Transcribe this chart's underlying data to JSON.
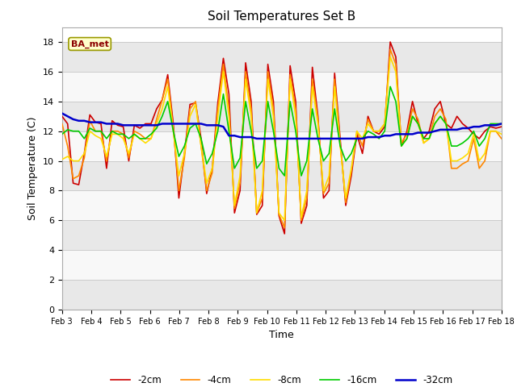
{
  "title": "Soil Temperatures Set B",
  "xlabel": "Time",
  "ylabel": "Soil Temperature (C)",
  "legend_label": "BA_met",
  "ylim": [
    0,
    19
  ],
  "yticks": [
    0,
    2,
    4,
    6,
    8,
    10,
    12,
    14,
    16,
    18
  ],
  "x_labels": [
    "Feb 3",
    "Feb 4",
    "Feb 5",
    "Feb 6",
    "Feb 7",
    "Feb 8",
    "Feb 9",
    "Feb 10",
    "Feb 11",
    "Feb 12",
    "Feb 13",
    "Feb 14",
    "Feb 15",
    "Feb 16",
    "Feb 17",
    "Feb 18"
  ],
  "background_color": "#ffffff",
  "band_colors": [
    "#e8e8e8",
    "#f8f8f8"
  ],
  "series": {
    "-2cm": {
      "color": "#cc0000",
      "linewidth": 1.2
    },
    "-4cm": {
      "color": "#ff8800",
      "linewidth": 1.2
    },
    "-8cm": {
      "color": "#ffdd00",
      "linewidth": 1.2
    },
    "-16cm": {
      "color": "#00cc00",
      "linewidth": 1.2
    },
    "-32cm": {
      "color": "#0000cc",
      "linewidth": 1.8
    }
  },
  "data_2cm": [
    13.0,
    12.5,
    8.5,
    8.4,
    10.5,
    13.1,
    12.6,
    12.5,
    9.5,
    12.7,
    12.4,
    12.3,
    10.0,
    12.4,
    12.2,
    12.5,
    12.5,
    13.5,
    14.1,
    15.8,
    12.5,
    7.5,
    10.5,
    13.8,
    13.9,
    11.5,
    7.8,
    9.5,
    13.9,
    16.9,
    14.5,
    6.5,
    8.0,
    16.6,
    14.0,
    6.4,
    7.0,
    16.5,
    14.0,
    6.3,
    5.1,
    16.4,
    14.0,
    5.8,
    7.0,
    16.3,
    13.0,
    7.5,
    8.0,
    15.9,
    11.5,
    7.0,
    9.0,
    11.8,
    10.5,
    13.0,
    12.0,
    11.8,
    12.3,
    18.0,
    17.0,
    11.0,
    12.0,
    14.0,
    12.5,
    11.5,
    12.0,
    13.5,
    14.0,
    12.5,
    12.2,
    13.0,
    12.5,
    12.2,
    11.8,
    11.5,
    12.0,
    12.3,
    12.2,
    12.3
  ],
  "data_4cm": [
    12.5,
    11.0,
    8.8,
    9.0,
    10.2,
    12.7,
    12.0,
    12.0,
    10.0,
    12.0,
    12.0,
    11.8,
    10.2,
    12.0,
    11.8,
    11.5,
    11.5,
    12.8,
    14.1,
    15.5,
    12.2,
    8.0,
    10.2,
    13.5,
    14.0,
    11.0,
    8.0,
    9.2,
    13.5,
    16.5,
    13.5,
    6.8,
    8.5,
    16.0,
    13.5,
    6.5,
    7.5,
    16.0,
    13.5,
    6.4,
    5.5,
    15.8,
    13.5,
    6.0,
    7.5,
    15.5,
    12.8,
    7.8,
    8.5,
    15.5,
    11.2,
    7.2,
    9.3,
    12.0,
    11.0,
    12.8,
    12.0,
    12.0,
    12.5,
    17.5,
    16.5,
    11.2,
    11.8,
    13.5,
    12.8,
    11.2,
    11.5,
    13.0,
    13.5,
    12.8,
    9.5,
    9.5,
    9.8,
    10.0,
    11.5,
    9.5,
    10.0,
    12.0,
    12.0,
    11.5
  ],
  "data_8cm": [
    10.1,
    10.3,
    10.0,
    10.0,
    10.5,
    12.0,
    11.7,
    11.5,
    10.3,
    11.8,
    11.8,
    11.5,
    10.5,
    11.8,
    11.5,
    11.2,
    11.5,
    12.5,
    13.5,
    15.0,
    12.0,
    9.0,
    10.5,
    13.0,
    13.8,
    11.0,
    8.5,
    9.5,
    13.0,
    16.0,
    13.0,
    7.0,
    9.0,
    15.5,
    13.0,
    6.5,
    8.0,
    15.5,
    13.0,
    6.5,
    6.0,
    15.5,
    13.0,
    6.2,
    8.0,
    15.0,
    12.5,
    8.0,
    9.0,
    15.0,
    11.0,
    7.5,
    9.5,
    12.0,
    11.5,
    12.5,
    12.0,
    12.0,
    12.5,
    17.0,
    16.0,
    11.0,
    11.5,
    13.0,
    12.5,
    11.2,
    11.5,
    12.5,
    13.0,
    12.5,
    10.0,
    10.0,
    10.2,
    10.5,
    11.8,
    10.0,
    10.5,
    12.0,
    12.0,
    11.8
  ],
  "data_16cm": [
    11.8,
    12.1,
    12.0,
    12.0,
    11.5,
    12.2,
    12.0,
    12.0,
    11.5,
    12.0,
    11.8,
    11.8,
    11.5,
    11.8,
    11.5,
    11.5,
    11.8,
    12.2,
    13.0,
    14.0,
    12.0,
    10.3,
    11.0,
    12.2,
    12.5,
    11.5,
    9.8,
    10.5,
    12.0,
    14.5,
    12.0,
    9.5,
    10.2,
    14.0,
    12.0,
    9.5,
    10.0,
    14.0,
    12.0,
    9.5,
    9.0,
    14.0,
    12.0,
    9.0,
    10.0,
    13.5,
    11.5,
    10.0,
    10.5,
    13.5,
    11.0,
    10.0,
    10.5,
    11.5,
    11.5,
    12.0,
    11.8,
    11.5,
    12.0,
    15.0,
    14.0,
    11.0,
    11.5,
    13.0,
    12.5,
    11.5,
    11.5,
    12.5,
    13.0,
    12.5,
    11.0,
    11.0,
    11.2,
    11.5,
    12.0,
    11.0,
    11.5,
    12.5,
    12.5,
    12.5
  ],
  "data_32cm": [
    13.2,
    13.0,
    12.8,
    12.7,
    12.7,
    12.6,
    12.6,
    12.6,
    12.5,
    12.5,
    12.5,
    12.4,
    12.4,
    12.4,
    12.4,
    12.4,
    12.4,
    12.4,
    12.5,
    12.5,
    12.5,
    12.5,
    12.5,
    12.5,
    12.5,
    12.5,
    12.4,
    12.4,
    12.4,
    12.3,
    11.7,
    11.7,
    11.6,
    11.6,
    11.6,
    11.5,
    11.5,
    11.5,
    11.5,
    11.5,
    11.5,
    11.5,
    11.5,
    11.5,
    11.5,
    11.5,
    11.5,
    11.5,
    11.5,
    11.5,
    11.5,
    11.5,
    11.5,
    11.5,
    11.5,
    11.6,
    11.6,
    11.6,
    11.7,
    11.7,
    11.8,
    11.8,
    11.8,
    11.8,
    11.9,
    11.9,
    11.9,
    12.0,
    12.1,
    12.1,
    12.1,
    12.1,
    12.2,
    12.2,
    12.3,
    12.3,
    12.4,
    12.4,
    12.4,
    12.5
  ]
}
